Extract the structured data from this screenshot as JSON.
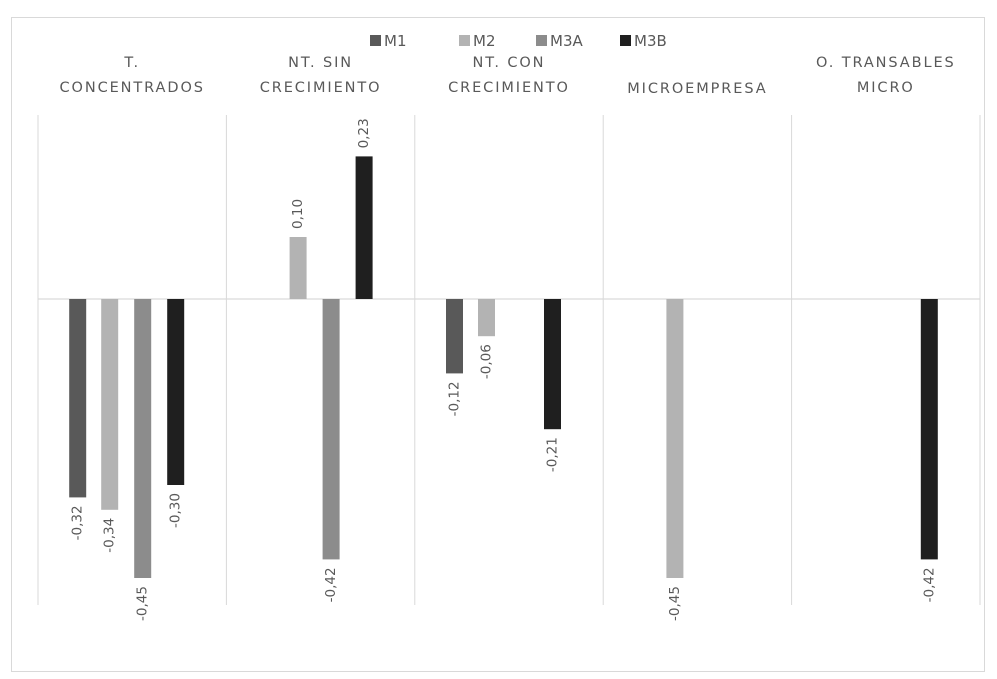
{
  "chart_data": {
    "type": "bar",
    "title": "",
    "categories": [
      [
        "T.",
        "CONCENTRADOS"
      ],
      [
        "NT. SIN",
        "CRECIMIENTO"
      ],
      [
        "NT. CON",
        "CRECIMIENTO"
      ],
      [
        "MICROEMPRESA"
      ],
      [
        "O. TRANSABLES",
        "MICRO"
      ]
    ],
    "series": [
      {
        "name": "M1",
        "color": "#595959",
        "values": [
          -0.32,
          null,
          -0.12,
          null,
          null
        ],
        "labels": [
          "-0,32",
          "",
          "-0,12",
          "",
          ""
        ]
      },
      {
        "name": "M2",
        "color": "#b3b3b3",
        "values": [
          -0.34,
          0.1,
          -0.06,
          -0.45,
          null
        ],
        "labels": [
          "-0,34",
          "0,10",
          "-0,06",
          "-0,45",
          ""
        ]
      },
      {
        "name": "M3A",
        "color": "#8c8c8c",
        "values": [
          -0.45,
          -0.42,
          null,
          null,
          null
        ],
        "labels": [
          "-0,45",
          "-0,42",
          "",
          "",
          ""
        ]
      },
      {
        "name": "M3B",
        "color": "#1f1f1f",
        "values": [
          -0.3,
          0.23,
          -0.21,
          null,
          -0.42
        ],
        "labels": [
          "-0,30",
          "0,23",
          "-0,21",
          "",
          "-0,42"
        ]
      }
    ],
    "ylim": [
      -0.5,
      0.3
    ],
    "grid": "vertical",
    "legend": "top-center",
    "axis_color": "#d9d9d9",
    "text_color": "#595959"
  }
}
